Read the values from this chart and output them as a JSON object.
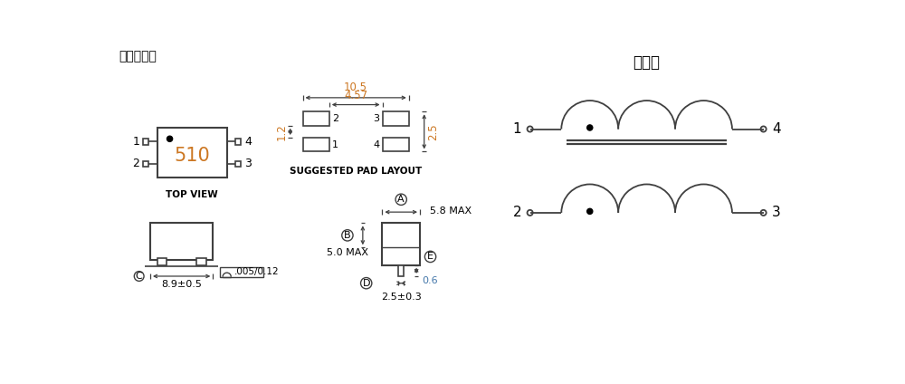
{
  "bg_color": "#ffffff",
  "title_phase": "相位图",
  "title_size": "尺寸图纸：",
  "top_view_label": "TOP VIEW",
  "pad_layout_label": "SUGGESTED PAD LAYOUT",
  "component_label": "510",
  "dim_10_5": "10.5",
  "dim_4_57": "4.57",
  "dim_1_2": "1.2",
  "dim_2_5": "2.5",
  "dim_5_8": "5.8 MAX",
  "dim_5_0": "5.0 MAX",
  "dim_2_5b": "2.5±0.3",
  "dim_8_9": "8.9±0.5",
  "dim_0_6": "0.6",
  "dim_tol": ".005/0.12",
  "label_A": "A",
  "label_B": "B",
  "label_C": "C",
  "label_D": "D",
  "label_E": "E",
  "line_color": "#404040",
  "dim_color": "#4477aa",
  "text_color": "#000000",
  "orange_color": "#cc7722"
}
